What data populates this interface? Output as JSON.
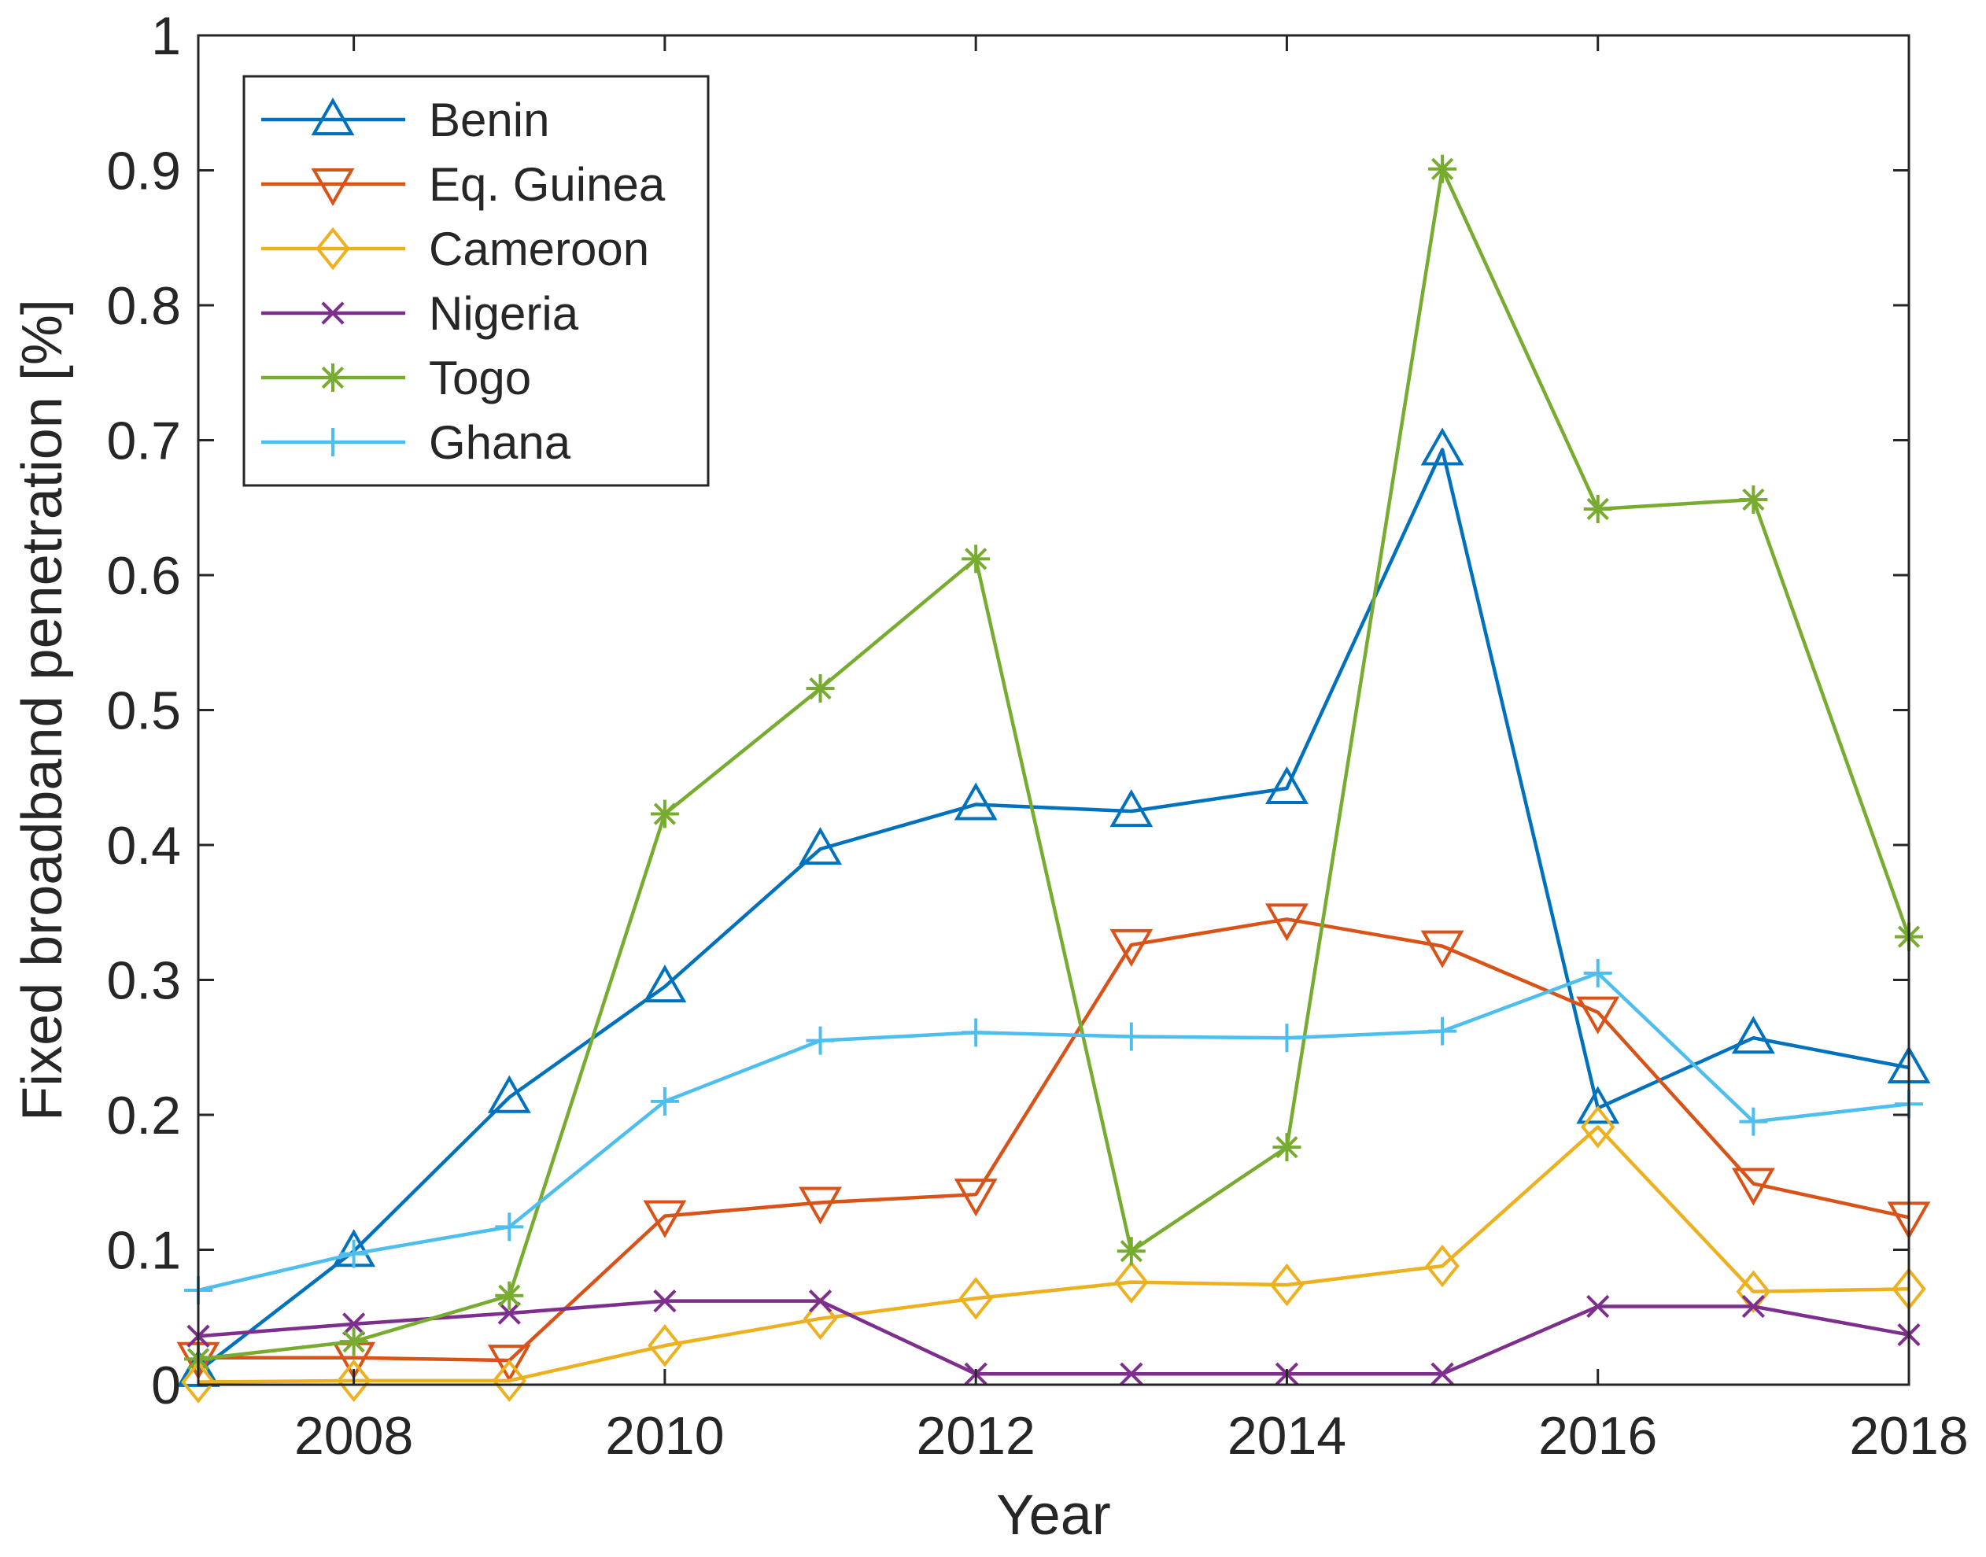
{
  "chart_data": {
    "type": "line",
    "title": "",
    "xlabel": "Year",
    "ylabel": "Fixed broadband penetration [%]",
    "x": [
      2007,
      2008,
      2009,
      2010,
      2011,
      2012,
      2013,
      2014,
      2015,
      2016,
      2017,
      2018
    ],
    "xlim": [
      2007,
      2018
    ],
    "ylim": [
      0,
      1
    ],
    "xticks": [
      2008,
      2010,
      2012,
      2014,
      2016,
      2018
    ],
    "xtick_labels": [
      "2008",
      "2010",
      "2012",
      "2014",
      "2016",
      "2018"
    ],
    "yticks": [
      0,
      0.1,
      0.2,
      0.3,
      0.4,
      0.5,
      0.6,
      0.7,
      0.8,
      0.9,
      1
    ],
    "ytick_labels": [
      "0",
      "0.1",
      "0.2",
      "0.3",
      "0.4",
      "0.5",
      "0.6",
      "0.7",
      "0.8",
      "0.9",
      "1"
    ],
    "grid": false,
    "legend_position": "top-left",
    "series": [
      {
        "name": "Benin",
        "color": "#0072BD",
        "marker": "triangle-up",
        "values": [
          0.01,
          0.099,
          0.213,
          0.295,
          0.397,
          0.43,
          0.425,
          0.442,
          0.693,
          0.205,
          0.257,
          0.235
        ]
      },
      {
        "name": "Eq. Guinea",
        "color": "#D95319",
        "marker": "triangle-down",
        "values": [
          0.02,
          0.02,
          0.018,
          0.125,
          0.135,
          0.141,
          0.326,
          0.345,
          0.325,
          0.276,
          0.149,
          0.124
        ]
      },
      {
        "name": "Cameroon",
        "color": "#EDB120",
        "marker": "diamond",
        "values": [
          0.002,
          0.003,
          0.003,
          0.029,
          0.049,
          0.064,
          0.076,
          0.074,
          0.088,
          0.191,
          0.069,
          0.071
        ]
      },
      {
        "name": "Nigeria",
        "color": "#7E2F8E",
        "marker": "x",
        "values": [
          0.036,
          0.045,
          0.053,
          0.062,
          0.062,
          0.008,
          0.008,
          0.008,
          0.008,
          0.058,
          0.058,
          0.037
        ]
      },
      {
        "name": "Togo",
        "color": "#77AC30",
        "marker": "asterisk",
        "values": [
          0.019,
          0.032,
          0.066,
          0.423,
          0.516,
          0.612,
          0.099,
          0.176,
          0.901,
          0.649,
          0.656,
          0.332
        ]
      },
      {
        "name": "Ghana",
        "color": "#4DBEEE",
        "marker": "plus",
        "values": [
          0.07,
          0.097,
          0.117,
          0.21,
          0.255,
          0.261,
          0.258,
          0.257,
          0.262,
          0.305,
          0.195,
          0.208
        ]
      }
    ]
  }
}
